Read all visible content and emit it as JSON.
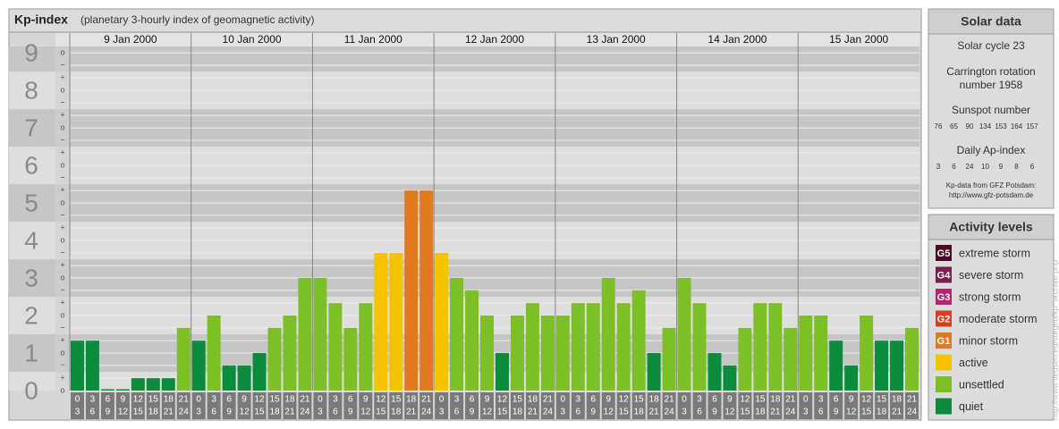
{
  "chart_data": {
    "type": "bar",
    "title": "Kp-index",
    "subtitle": "(planetary 3-hourly index of geomagnetic activity)",
    "groups": [
      "9 Jan 2000",
      "10 Jan 2000",
      "11 Jan 2000",
      "12 Jan 2000",
      "13 Jan 2000",
      "14 Jan 2000",
      "15 Jan 2000"
    ],
    "hours": [
      {
        "from": "0",
        "to": "3"
      },
      {
        "from": "3",
        "to": "6"
      },
      {
        "from": "6",
        "to": "9"
      },
      {
        "from": "9",
        "to": "12"
      },
      {
        "from": "12",
        "to": "15"
      },
      {
        "from": "15",
        "to": "18"
      },
      {
        "from": "18",
        "to": "21"
      },
      {
        "from": "21",
        "to": "24"
      }
    ],
    "values": [
      1.33,
      1.33,
      0,
      0,
      0.33,
      0.33,
      0.33,
      1.67,
      1.33,
      2,
      0.67,
      0.67,
      1,
      1.67,
      2,
      3,
      3,
      2.33,
      1.67,
      2.33,
      3.67,
      3.67,
      5.33,
      5.33,
      3.67,
      3,
      2.67,
      2,
      1,
      2,
      2.33,
      2,
      2,
      2.33,
      2.33,
      3,
      2.33,
      2.67,
      1,
      1.67,
      3,
      2.33,
      1,
      0.67,
      1.67,
      2.33,
      2.33,
      1.67,
      2,
      2,
      1.33,
      0.67,
      2,
      1.33,
      1.33,
      1.67
    ],
    "colors": [
      "#0a8c3c",
      "#0a8c3c",
      "#0a8c3c",
      "#0a8c3c",
      "#0a8c3c",
      "#0a8c3c",
      "#0a8c3c",
      "#7dbf26",
      "#0a8c3c",
      "#7dbf26",
      "#0a8c3c",
      "#0a8c3c",
      "#0a8c3c",
      "#7dbf26",
      "#7dbf26",
      "#7dbf26",
      "#7dbf26",
      "#7dbf26",
      "#7dbf26",
      "#7dbf26",
      "#f7c200",
      "#f7c200",
      "#e07a1c",
      "#e07a1c",
      "#f7c200",
      "#7dbf26",
      "#7dbf26",
      "#7dbf26",
      "#0a8c3c",
      "#7dbf26",
      "#7dbf26",
      "#7dbf26",
      "#7dbf26",
      "#7dbf26",
      "#7dbf26",
      "#7dbf26",
      "#7dbf26",
      "#7dbf26",
      "#0a8c3c",
      "#7dbf26",
      "#7dbf26",
      "#7dbf26",
      "#0a8c3c",
      "#0a8c3c",
      "#7dbf26",
      "#7dbf26",
      "#7dbf26",
      "#7dbf26",
      "#7dbf26",
      "#7dbf26",
      "#0a8c3c",
      "#0a8c3c",
      "#7dbf26",
      "#0a8c3c",
      "#0a8c3c",
      "#7dbf26"
    ],
    "ylim": [
      0,
      9.17
    ],
    "yticks": [
      0,
      1,
      2,
      3,
      4,
      5,
      6,
      7,
      8,
      9
    ],
    "minor_yticks": [
      {
        "value": 0,
        "label": "o"
      },
      {
        "value": 0.33,
        "label": "+"
      },
      {
        "value": 0.67,
        "label": "−"
      },
      {
        "value": 1,
        "label": "o"
      },
      {
        "value": 1.33,
        "label": "+"
      },
      {
        "value": 1.67,
        "label": "−"
      },
      {
        "value": 2,
        "label": "o"
      },
      {
        "value": 2.33,
        "label": "+"
      },
      {
        "value": 2.67,
        "label": "−"
      },
      {
        "value": 3,
        "label": "o"
      },
      {
        "value": 3.33,
        "label": "+"
      },
      {
        "value": 3.67,
        "label": "−"
      },
      {
        "value": 4,
        "label": "o"
      },
      {
        "value": 4.33,
        "label": "+"
      },
      {
        "value": 4.67,
        "label": "−"
      },
      {
        "value": 5,
        "label": "o"
      },
      {
        "value": 5.33,
        "label": "+"
      },
      {
        "value": 5.67,
        "label": "−"
      },
      {
        "value": 6,
        "label": "o"
      },
      {
        "value": 6.33,
        "label": "+"
      },
      {
        "value": 6.67,
        "label": "−"
      },
      {
        "value": 7,
        "label": "o"
      },
      {
        "value": 7.33,
        "label": "+"
      },
      {
        "value": 7.67,
        "label": "−"
      },
      {
        "value": 8,
        "label": "o"
      },
      {
        "value": 8.33,
        "label": "+"
      },
      {
        "value": 8.67,
        "label": "−"
      },
      {
        "value": 9,
        "label": "o"
      }
    ],
    "grid": true
  },
  "solar_data": {
    "title": "Solar data",
    "cycle": "Solar cycle 23",
    "rotation_1": "Carrington rotation",
    "rotation_2": "number 1958",
    "sunspot_title": "Sunspot number",
    "sunspot": [
      76,
      65,
      90,
      134,
      153,
      164,
      157
    ],
    "ap_title": "Daily Ap-index",
    "ap": [
      3,
      6,
      24,
      10,
      9,
      8,
      6
    ],
    "source": "Kp-data from GFZ Potsdam:",
    "url": "http://www.gfz-potsdam.de"
  },
  "activity_levels": {
    "title": "Activity levels",
    "items": [
      {
        "badge": "G5",
        "label": "extreme storm",
        "color": "#4d0a26"
      },
      {
        "badge": "G4",
        "label": "severe storm",
        "color": "#7b1d4e"
      },
      {
        "badge": "G3",
        "label": "strong storm",
        "color": "#b5226e"
      },
      {
        "badge": "G2",
        "label": "moderate storm",
        "color": "#d8401c"
      },
      {
        "badge": "G1",
        "label": "minor storm",
        "color": "#e07a1c"
      },
      {
        "badge": null,
        "label": "active",
        "color": "#f7c200"
      },
      {
        "badge": null,
        "label": "unsettled",
        "color": "#7dbf26"
      },
      {
        "badge": null,
        "label": "quiet",
        "color": "#0a8c3c"
      }
    ]
  },
  "watermark": "http://www.tieusen.eu/surgeo/kp_archive.php"
}
